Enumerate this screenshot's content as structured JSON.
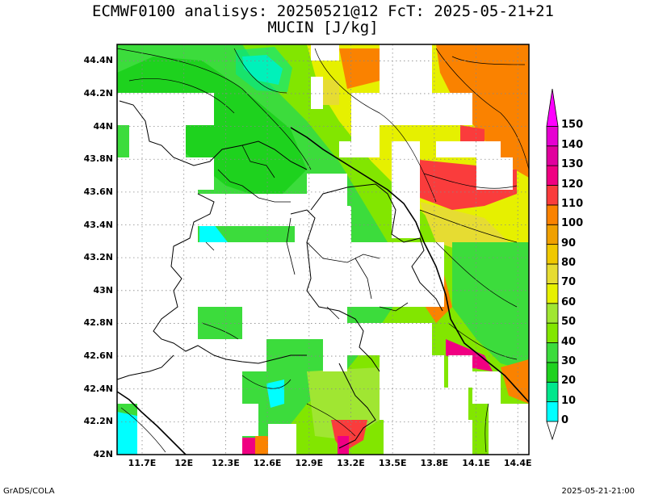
{
  "title": "ECMWF0100 analisys: 20250521@12 FcT: 2025-05-21+21",
  "subtitle": "MUCIN [J/kg]",
  "footer_left": "GrADS/COLA",
  "footer_right": "2025-05-21-21:00",
  "chart_data": {
    "type": "heatmap",
    "variable": "MUCIN [J/kg]",
    "x_ticks": [
      "11.7E",
      "12E",
      "12.3E",
      "12.6E",
      "12.9E",
      "13.2E",
      "13.5E",
      "13.8E",
      "14.1E",
      "14.4E"
    ],
    "y_ticks": [
      "42N",
      "42.2N",
      "42.4N",
      "42.6N",
      "42.8N",
      "43N",
      "43.2N",
      "43.4N",
      "43.6N",
      "43.8N",
      "44N",
      "44.2N",
      "44.4N"
    ],
    "xlim": [
      11.52,
      14.48
    ],
    "ylim": [
      42.0,
      44.5
    ],
    "grid": true,
    "colorbar": {
      "levels": [
        0,
        10,
        20,
        30,
        40,
        50,
        60,
        70,
        80,
        90,
        100,
        110,
        120,
        130,
        140,
        150
      ],
      "labels": [
        "0",
        "10",
        "20",
        "30",
        "40",
        "50",
        "60",
        "70",
        "80",
        "90",
        "100",
        "110",
        "120",
        "130",
        "140",
        "150"
      ],
      "colors": [
        "#00ffff",
        "#00e78c",
        "#1ed21e",
        "#3cdc3c",
        "#82e600",
        "#a0e632",
        "#e6f000",
        "#e6dc32",
        "#f0c800",
        "#f0a000",
        "#fa8200",
        "#fa3c3c",
        "#f00082",
        "#e1009e",
        "#e600d2",
        "#ff00ff"
      ]
    }
  }
}
